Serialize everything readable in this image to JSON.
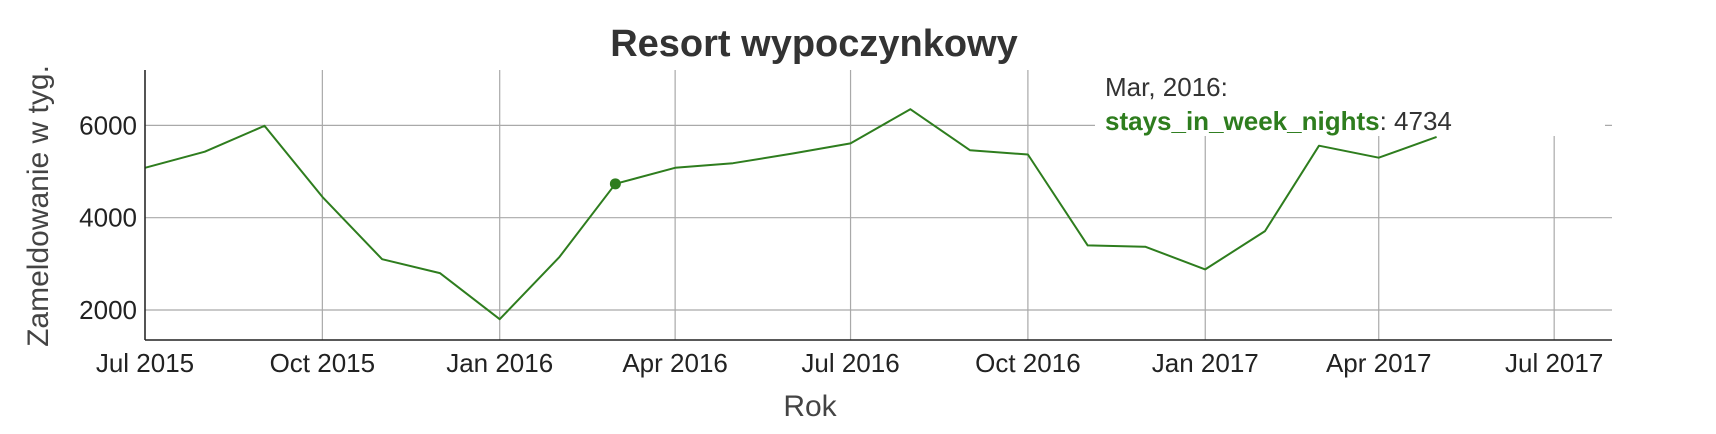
{
  "chart_data": {
    "type": "line",
    "title": "Resort wypoczynkowy",
    "xlabel": "Rok",
    "ylabel": "Zameldowanie w tyg.",
    "x_ticks": [
      "Jul 2015",
      "Oct 2015",
      "Jan 2016",
      "Apr 2016",
      "Jul 2016",
      "Oct 2016",
      "Jan 2017",
      "Apr 2017",
      "Jul 2017"
    ],
    "y_ticks": [
      2000,
      4000,
      6000
    ],
    "xlim": [
      "2015-07-01",
      "2017-07-31"
    ],
    "ylim": [
      1350,
      7200
    ],
    "grid": true,
    "series": [
      {
        "name": "stays_in_week_nights",
        "color": "#2e7d1e",
        "points": [
          [
            "2015-07-01",
            5080
          ],
          [
            "2015-08-01",
            5430
          ],
          [
            "2015-09-01",
            5990
          ],
          [
            "2015-10-01",
            4450
          ],
          [
            "2015-11-01",
            3100
          ],
          [
            "2015-12-01",
            2800
          ],
          [
            "2016-01-01",
            1800
          ],
          [
            "2016-02-01",
            3150
          ],
          [
            "2016-03-01",
            4734
          ],
          [
            "2016-04-01",
            5080
          ],
          [
            "2016-05-01",
            5180
          ],
          [
            "2016-06-01",
            5390
          ],
          [
            "2016-07-01",
            5610
          ],
          [
            "2016-08-01",
            6350
          ],
          [
            "2016-09-01",
            5460
          ],
          [
            "2016-10-01",
            5370
          ],
          [
            "2016-11-01",
            3400
          ],
          [
            "2016-12-01",
            3370
          ],
          [
            "2017-01-01",
            2880
          ],
          [
            "2017-02-01",
            3710
          ],
          [
            "2017-03-01",
            5560
          ],
          [
            "2017-04-01",
            5300
          ],
          [
            "2017-05-01",
            5750
          ]
        ]
      }
    ],
    "tooltip": {
      "date": "Mar, 2016:",
      "series": "stays_in_week_nights",
      "value": "4734"
    }
  }
}
